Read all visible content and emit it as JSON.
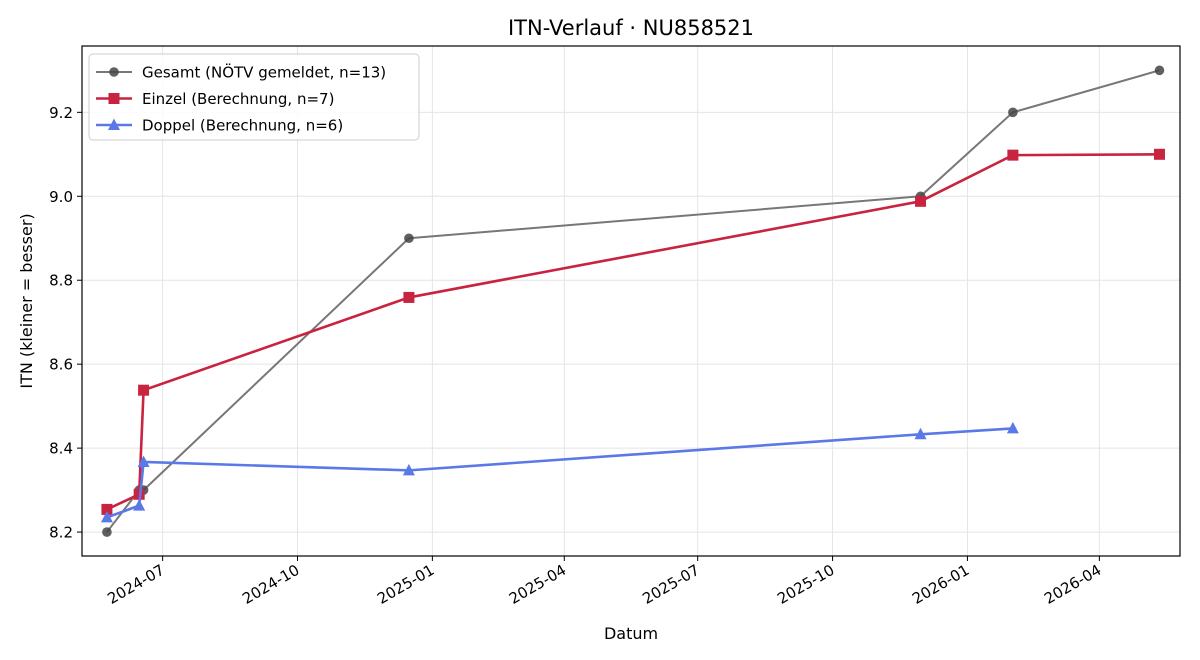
{
  "chart_data": {
    "type": "line",
    "title": "ITN-Verlauf · NU858521",
    "xlabel": "Datum",
    "ylabel": "ITN  (kleiner = besser)",
    "x_ticks": [
      "2024-07",
      "2024-10",
      "2025-01",
      "2025-04",
      "2025-07",
      "2025-10",
      "2026-01",
      "2026-04"
    ],
    "y_ticks": [
      "8.2",
      "8.4",
      "8.6",
      "8.8",
      "9.0",
      "9.2"
    ],
    "xlim": [
      "2024-05-07",
      "2026-05-26"
    ],
    "ylim": [
      8.143,
      9.358
    ],
    "grid": true,
    "legend_position": "top-left",
    "series": [
      {
        "name": "Gesamt (NÖTV gemeldet, n=13)",
        "color": "#777777",
        "marker": "circle",
        "points": [
          {
            "x": "2024-05-24",
            "y": 8.2
          },
          {
            "x": "2024-06-15",
            "y": 8.3
          },
          {
            "x": "2024-06-18",
            "y": 8.3
          },
          {
            "x": "2024-12-16",
            "y": 8.9
          },
          {
            "x": "2025-11-30",
            "y": 9.0
          },
          {
            "x": "2026-02-01",
            "y": 9.2
          },
          {
            "x": "2026-05-12",
            "y": 9.3
          }
        ]
      },
      {
        "name": "Einzel (Berechnung, n=7)",
        "color": "#c8233f",
        "marker": "square",
        "points": [
          {
            "x": "2024-05-24",
            "y": 8.254
          },
          {
            "x": "2024-06-15",
            "y": 8.29
          },
          {
            "x": "2024-06-18",
            "y": 8.538
          },
          {
            "x": "2024-12-16",
            "y": 8.759
          },
          {
            "x": "2025-11-30",
            "y": 8.988
          },
          {
            "x": "2026-02-01",
            "y": 9.098
          },
          {
            "x": "2026-05-12",
            "y": 9.1
          }
        ]
      },
      {
        "name": "Doppel (Berechnung, n=6)",
        "color": "#5b78e8",
        "marker": "triangle",
        "points": [
          {
            "x": "2024-05-24",
            "y": 8.235
          },
          {
            "x": "2024-06-15",
            "y": 8.263
          },
          {
            "x": "2024-06-18",
            "y": 8.367
          },
          {
            "x": "2024-12-16",
            "y": 8.347
          },
          {
            "x": "2025-11-30",
            "y": 8.433
          },
          {
            "x": "2026-02-01",
            "y": 8.447
          }
        ]
      }
    ]
  }
}
